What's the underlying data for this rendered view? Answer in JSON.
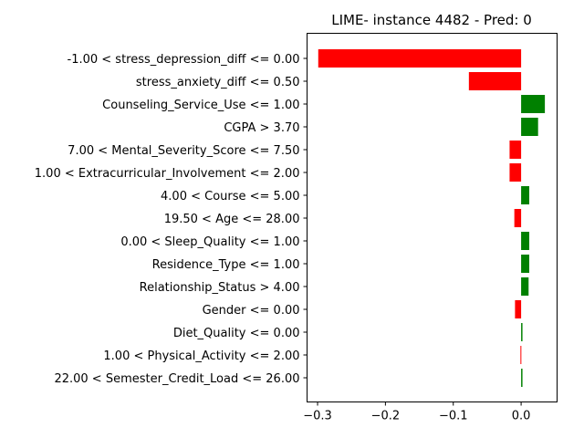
{
  "chart_data": {
    "type": "bar",
    "orientation": "horizontal",
    "title": "LIME- instance 4482 - Pred: 0",
    "xlabel": "",
    "ylabel": "",
    "xlim": [
      -0.3155,
      0.053
    ],
    "xticks": [
      {
        "value": -0.3,
        "label": "−0.3"
      },
      {
        "value": -0.2,
        "label": "−0.2"
      },
      {
        "value": -0.1,
        "label": "−0.1"
      },
      {
        "value": 0.0,
        "label": "0.0"
      }
    ],
    "colors": {
      "positive": "#008000",
      "negative": "#ff0000"
    },
    "categories": [
      "-1.00 < stress_depression_diff <= 0.00",
      "stress_anxiety_diff <= 0.50",
      "Counseling_Service_Use <= 1.00",
      "CGPA > 3.70",
      "7.00 < Mental_Severity_Score <= 7.50",
      "1.00 < Extracurricular_Involvement <= 2.00",
      "4.00 < Course <= 5.00",
      "19.50 < Age <= 28.00",
      "0.00 < Sleep_Quality <= 1.00",
      "Residence_Type <= 1.00",
      "Relationship_Status > 4.00",
      "Gender <= 0.00",
      "Diet_Quality <= 0.00",
      "1.00 < Physical_Activity <= 2.00",
      "22.00 < Semester_Credit_Load <= 26.00"
    ],
    "values": [
      -0.299,
      -0.077,
      0.035,
      0.025,
      -0.017,
      -0.017,
      0.012,
      -0.01,
      0.012,
      0.012,
      0.011,
      -0.009,
      0.002,
      -0.001,
      0.002
    ]
  }
}
